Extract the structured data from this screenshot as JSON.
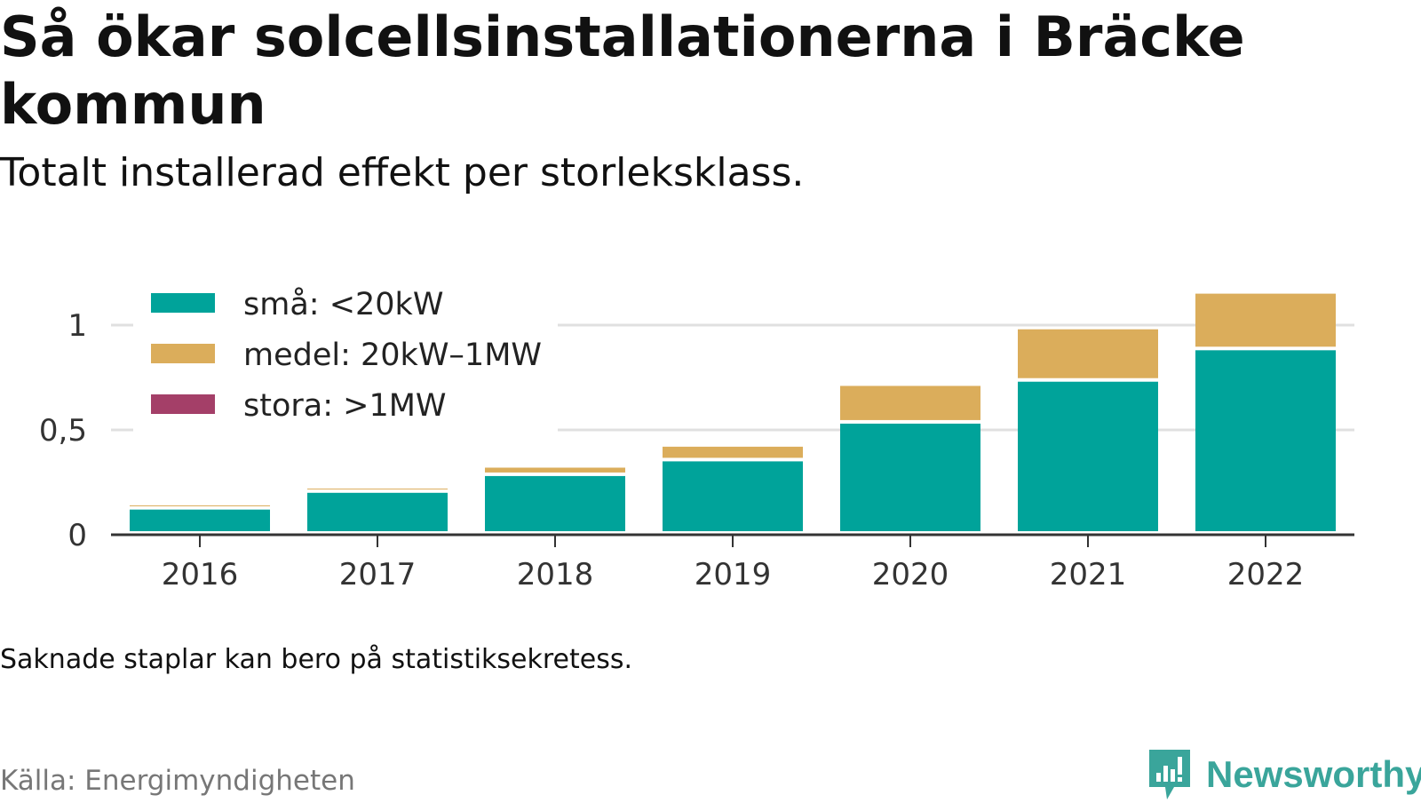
{
  "title": "Så ökar solcellsinstallationerna i Bräcke kommun",
  "subtitle": "Totalt installerad effekt per storleksklass.",
  "note": "Saknade staplar kan bero på statistiksekretess.",
  "source": "Källa: Energimyndigheten",
  "brand": {
    "name": "Newsworthy",
    "logo_icon": "bar-chart-bubble-icon",
    "color": "#3aa59b"
  },
  "chart_data": {
    "type": "bar",
    "stacked": true,
    "categories": [
      "2016",
      "2017",
      "2018",
      "2019",
      "2020",
      "2021",
      "2022"
    ],
    "series": [
      {
        "name": "små: <20kW",
        "color": "#00a39a",
        "values": [
          0.12,
          0.2,
          0.28,
          0.35,
          0.53,
          0.73,
          0.88
        ]
      },
      {
        "name": "medel: 20kW–1MW",
        "color": "#dbad5b",
        "values": [
          0.02,
          0.02,
          0.04,
          0.07,
          0.18,
          0.25,
          0.27
        ]
      },
      {
        "name": "stora: >1MW",
        "color": "#a43f68",
        "values": [
          0,
          0,
          0,
          0,
          0,
          0,
          0
        ]
      }
    ],
    "yticks": [
      {
        "value": 0,
        "label": "0"
      },
      {
        "value": 0.5,
        "label": "0,5"
      },
      {
        "value": 1,
        "label": "1"
      }
    ],
    "ylim": [
      0,
      1.2
    ],
    "grid": true,
    "legend_position": "top-left"
  }
}
